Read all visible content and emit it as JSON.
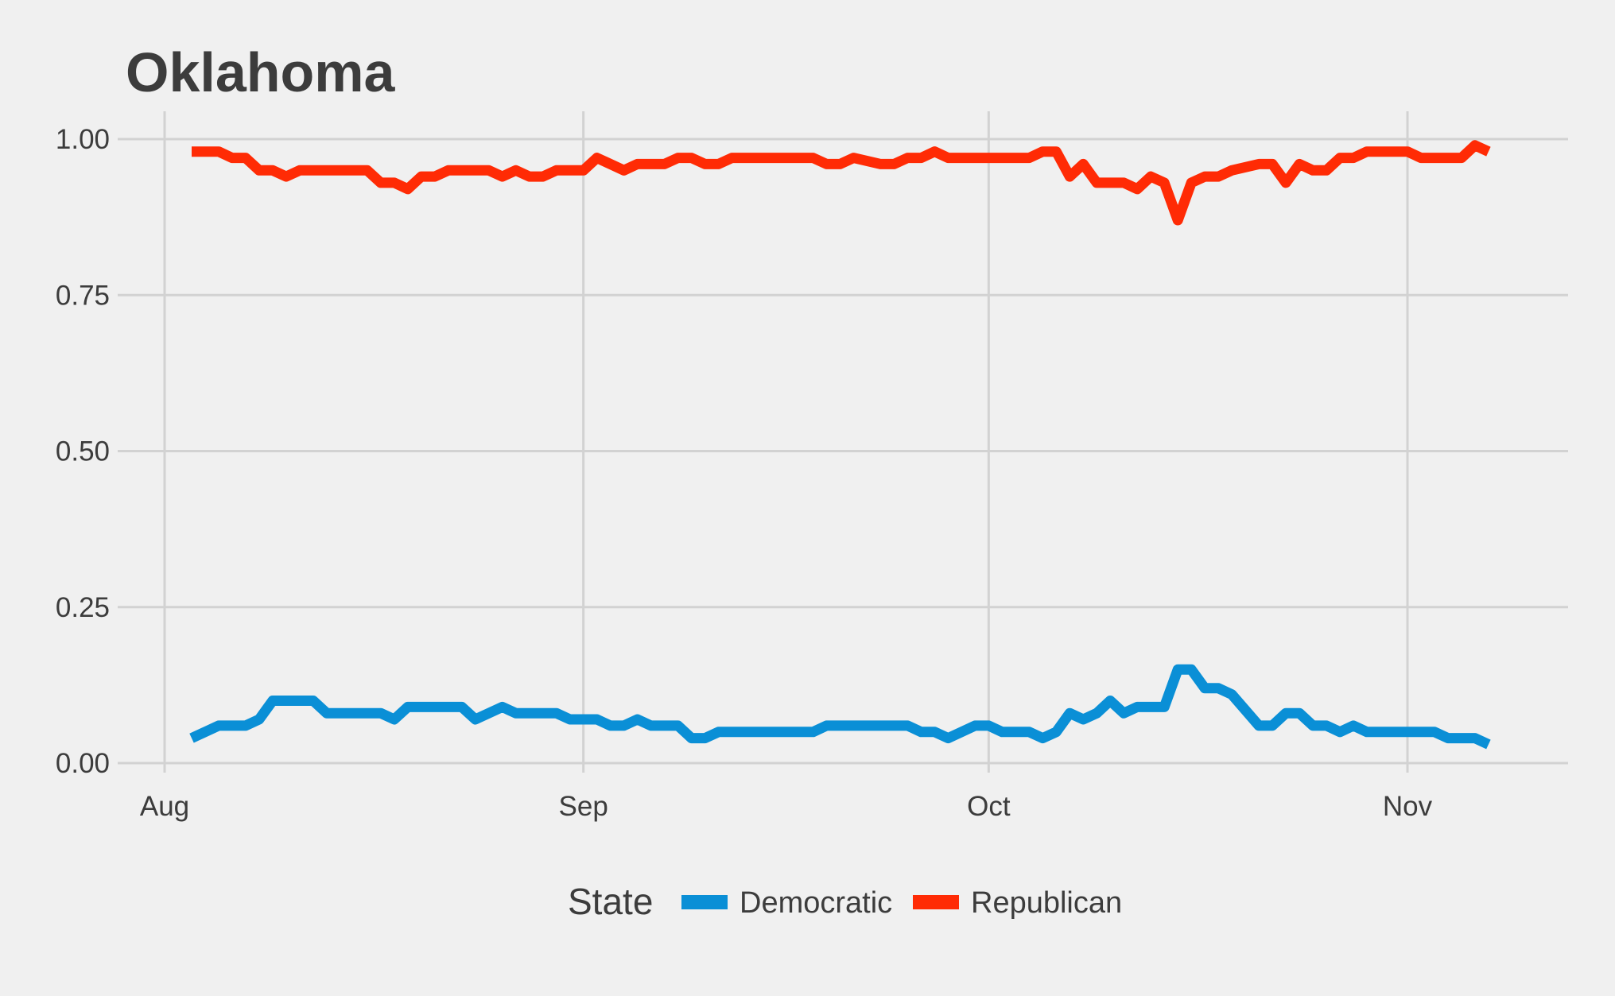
{
  "chart_data": {
    "type": "line",
    "title": "Oklahoma",
    "xlabel": "",
    "ylabel": "",
    "x_type": "date",
    "x_ticks": [
      {
        "date": "2016-08-01",
        "label": "Aug"
      },
      {
        "date": "2016-09-01",
        "label": "Sep"
      },
      {
        "date": "2016-10-01",
        "label": "Oct"
      },
      {
        "date": "2016-11-01",
        "label": "Nov"
      }
    ],
    "xlim": [
      "2016-08-01",
      "2016-11-12"
    ],
    "y_ticks": [
      0,
      0.25,
      0.5,
      0.75,
      1.0
    ],
    "y_tick_labels": [
      "0.00",
      "0.25",
      "0.50",
      "0.75",
      "1.00"
    ],
    "ylim": [
      0,
      1
    ],
    "grid": true,
    "legend": {
      "title": "State",
      "position": "bottom"
    },
    "series": [
      {
        "name": "Democratic",
        "color": "#0a8fd6",
        "points": [
          [
            "2016-08-03",
            0.04
          ],
          [
            "2016-08-05",
            0.06
          ],
          [
            "2016-08-07",
            0.06
          ],
          [
            "2016-08-08",
            0.07
          ],
          [
            "2016-08-09",
            0.1
          ],
          [
            "2016-08-12",
            0.1
          ],
          [
            "2016-08-13",
            0.08
          ],
          [
            "2016-08-17",
            0.08
          ],
          [
            "2016-08-18",
            0.07
          ],
          [
            "2016-08-19",
            0.09
          ],
          [
            "2016-08-23",
            0.09
          ],
          [
            "2016-08-24",
            0.07
          ],
          [
            "2016-08-26",
            0.09
          ],
          [
            "2016-08-27",
            0.08
          ],
          [
            "2016-08-30",
            0.08
          ],
          [
            "2016-08-31",
            0.07
          ],
          [
            "2016-09-02",
            0.07
          ],
          [
            "2016-09-03",
            0.06
          ],
          [
            "2016-09-04",
            0.06
          ],
          [
            "2016-09-05",
            0.07
          ],
          [
            "2016-09-06",
            0.06
          ],
          [
            "2016-09-08",
            0.06
          ],
          [
            "2016-09-09",
            0.04
          ],
          [
            "2016-09-10",
            0.04
          ],
          [
            "2016-09-11",
            0.05
          ],
          [
            "2016-09-18",
            0.05
          ],
          [
            "2016-09-19",
            0.06
          ],
          [
            "2016-09-25",
            0.06
          ],
          [
            "2016-09-26",
            0.05
          ],
          [
            "2016-09-27",
            0.05
          ],
          [
            "2016-09-28",
            0.04
          ],
          [
            "2016-09-30",
            0.06
          ],
          [
            "2016-10-01",
            0.06
          ],
          [
            "2016-10-02",
            0.05
          ],
          [
            "2016-10-04",
            0.05
          ],
          [
            "2016-10-05",
            0.04
          ],
          [
            "2016-10-06",
            0.05
          ],
          [
            "2016-10-07",
            0.08
          ],
          [
            "2016-10-08",
            0.07
          ],
          [
            "2016-10-09",
            0.08
          ],
          [
            "2016-10-10",
            0.1
          ],
          [
            "2016-10-11",
            0.08
          ],
          [
            "2016-10-12",
            0.09
          ],
          [
            "2016-10-14",
            0.09
          ],
          [
            "2016-10-15",
            0.15
          ],
          [
            "2016-10-16",
            0.15
          ],
          [
            "2016-10-17",
            0.12
          ],
          [
            "2016-10-18",
            0.12
          ],
          [
            "2016-10-19",
            0.11
          ],
          [
            "2016-10-21",
            0.06
          ],
          [
            "2016-10-22",
            0.06
          ],
          [
            "2016-10-23",
            0.08
          ],
          [
            "2016-10-24",
            0.08
          ],
          [
            "2016-10-25",
            0.06
          ],
          [
            "2016-10-26",
            0.06
          ],
          [
            "2016-10-27",
            0.05
          ],
          [
            "2016-10-28",
            0.06
          ],
          [
            "2016-10-29",
            0.05
          ],
          [
            "2016-11-03",
            0.05
          ],
          [
            "2016-11-04",
            0.04
          ],
          [
            "2016-11-06",
            0.04
          ],
          [
            "2016-11-07",
            0.03
          ]
        ]
      },
      {
        "name": "Republican",
        "color": "#ff2b05",
        "points": [
          [
            "2016-08-03",
            0.98
          ],
          [
            "2016-08-05",
            0.98
          ],
          [
            "2016-08-06",
            0.97
          ],
          [
            "2016-08-07",
            0.97
          ],
          [
            "2016-08-08",
            0.95
          ],
          [
            "2016-08-09",
            0.95
          ],
          [
            "2016-08-10",
            0.94
          ],
          [
            "2016-08-11",
            0.95
          ],
          [
            "2016-08-16",
            0.95
          ],
          [
            "2016-08-17",
            0.93
          ],
          [
            "2016-08-18",
            0.93
          ],
          [
            "2016-08-19",
            0.92
          ],
          [
            "2016-08-20",
            0.94
          ],
          [
            "2016-08-21",
            0.94
          ],
          [
            "2016-08-22",
            0.95
          ],
          [
            "2016-08-25",
            0.95
          ],
          [
            "2016-08-26",
            0.94
          ],
          [
            "2016-08-27",
            0.95
          ],
          [
            "2016-08-28",
            0.94
          ],
          [
            "2016-08-29",
            0.94
          ],
          [
            "2016-08-30",
            0.95
          ],
          [
            "2016-09-01",
            0.95
          ],
          [
            "2016-09-02",
            0.97
          ],
          [
            "2016-09-04",
            0.95
          ],
          [
            "2016-09-05",
            0.96
          ],
          [
            "2016-09-07",
            0.96
          ],
          [
            "2016-09-08",
            0.97
          ],
          [
            "2016-09-09",
            0.97
          ],
          [
            "2016-09-10",
            0.96
          ],
          [
            "2016-09-11",
            0.96
          ],
          [
            "2016-09-12",
            0.97
          ],
          [
            "2016-09-18",
            0.97
          ],
          [
            "2016-09-19",
            0.96
          ],
          [
            "2016-09-20",
            0.96
          ],
          [
            "2016-09-21",
            0.97
          ],
          [
            "2016-09-23",
            0.96
          ],
          [
            "2016-09-24",
            0.96
          ],
          [
            "2016-09-25",
            0.97
          ],
          [
            "2016-09-26",
            0.97
          ],
          [
            "2016-09-27",
            0.98
          ],
          [
            "2016-09-28",
            0.97
          ],
          [
            "2016-10-04",
            0.97
          ],
          [
            "2016-10-05",
            0.98
          ],
          [
            "2016-10-06",
            0.98
          ],
          [
            "2016-10-07",
            0.94
          ],
          [
            "2016-10-08",
            0.96
          ],
          [
            "2016-10-09",
            0.93
          ],
          [
            "2016-10-11",
            0.93
          ],
          [
            "2016-10-12",
            0.92
          ],
          [
            "2016-10-13",
            0.94
          ],
          [
            "2016-10-14",
            0.93
          ],
          [
            "2016-10-15",
            0.87
          ],
          [
            "2016-10-16",
            0.93
          ],
          [
            "2016-10-17",
            0.94
          ],
          [
            "2016-10-18",
            0.94
          ],
          [
            "2016-10-19",
            0.95
          ],
          [
            "2016-10-21",
            0.96
          ],
          [
            "2016-10-22",
            0.96
          ],
          [
            "2016-10-23",
            0.93
          ],
          [
            "2016-10-24",
            0.96
          ],
          [
            "2016-10-25",
            0.95
          ],
          [
            "2016-10-26",
            0.95
          ],
          [
            "2016-10-27",
            0.97
          ],
          [
            "2016-10-28",
            0.97
          ],
          [
            "2016-10-29",
            0.98
          ],
          [
            "2016-11-01",
            0.98
          ],
          [
            "2016-11-02",
            0.97
          ],
          [
            "2016-11-05",
            0.97
          ],
          [
            "2016-11-06",
            0.99
          ],
          [
            "2016-11-07",
            0.98
          ]
        ]
      }
    ]
  }
}
